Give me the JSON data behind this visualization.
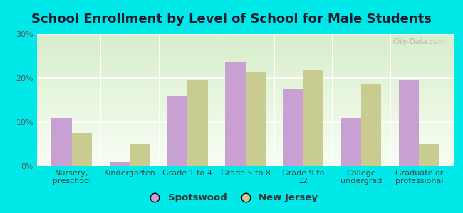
{
  "title": "School Enrollment by Level of School for Male Students",
  "categories": [
    "Nursery,\npreschool",
    "Kindergarten",
    "Grade 1 to 4",
    "Grade 5 to 8",
    "Grade 9 to\n12",
    "College\nundergrad",
    "Graduate or\nprofessional"
  ],
  "spotswood": [
    11,
    1,
    16,
    23.5,
    17.5,
    11,
    19.5
  ],
  "new_jersey": [
    7.5,
    5,
    19.5,
    21.5,
    22,
    18.5,
    5
  ],
  "spotswood_color": "#c8a0d2",
  "new_jersey_color": "#c8cc90",
  "background_color": "#00e8e8",
  "ylim": [
    0,
    30
  ],
  "yticks": [
    0,
    10,
    20,
    30
  ],
  "ytick_labels": [
    "0%",
    "10%",
    "20%",
    "30%"
  ],
  "title_fontsize": 13,
  "tick_fontsize": 8,
  "legend_fontsize": 9.5,
  "bar_width": 0.35,
  "watermark": "City-Data.com"
}
